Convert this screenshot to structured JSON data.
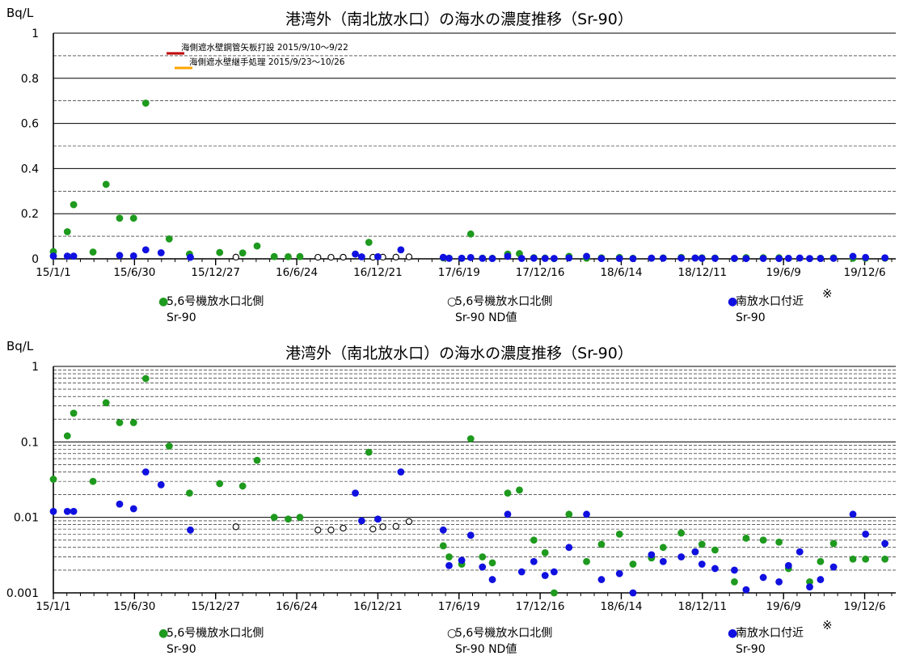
{
  "chart_data": [
    {
      "type": "scatter",
      "title": "港湾外（南北放水口）の海水の濃度推移（Sr-90）",
      "ylabel": "Bq/L",
      "yscale": "linear",
      "ylim": [
        0,
        1
      ],
      "yticks": [
        0,
        0.2,
        0.4,
        0.6,
        0.8,
        1
      ],
      "ytick_labels": [
        "0",
        "0.2",
        "0.4",
        "0.6",
        "0.8",
        "1"
      ],
      "dashed_grid": [
        0.1,
        0.3,
        0.5,
        0.7,
        0.9
      ],
      "xlim": [
        "2015-01-01",
        "2020-02-13"
      ],
      "xtick_labels": [
        "15/1/1",
        "15/6/30",
        "15/12/27",
        "16/6/24",
        "16/12/21",
        "17/6/19",
        "17/12/16",
        "18/6/14",
        "18/12/11",
        "19/6/9",
        "19/12/6"
      ],
      "xticks": [
        "2015-01-01",
        "2015-06-30",
        "2015-12-27",
        "2016-06-24",
        "2016-12-21",
        "2017-06-19",
        "2017-12-16",
        "2018-06-14",
        "2018-12-11",
        "2019-06-09",
        "2019-12-06"
      ],
      "annotations": [
        {
          "label": "海側遮水壁鋼管矢板打設 2015/9/10～9/22",
          "color": "#c00000"
        },
        {
          "label": "海側遮水壁継手処理 2015/9/23～10/26",
          "color": "#ffa500"
        }
      ],
      "legend": [
        {
          "marker": "●",
          "line1": "5,6号機放水口北側",
          "line2": "Sr-90",
          "color": "#1e9a1e"
        },
        {
          "marker": "○",
          "line1": "5,6号機放水口北側",
          "line2": "Sr-90 ND値",
          "color": "#000000"
        },
        {
          "marker": "●",
          "line1": "南放水口付近",
          "line2": "Sr-90",
          "note": "※",
          "color": "#1010e0"
        }
      ],
      "series": [
        {
          "name": "5,6号機放水口北側 Sr-90",
          "color": "#1e9a1e",
          "marker": "filled",
          "x": [
            "2015-01-01",
            "2015-02-01",
            "2015-02-15",
            "2015-03-30",
            "2015-04-28",
            "2015-05-28",
            "2015-06-28",
            "2015-07-25",
            "2015-09-15",
            "2015-10-30",
            "2016-01-05",
            "2016-02-25",
            "2016-03-28",
            "2016-05-05",
            "2016-06-05",
            "2016-07-01",
            "2016-12-01",
            "2017-05-15",
            "2017-05-28",
            "2017-06-25",
            "2017-07-15",
            "2017-08-10",
            "2017-09-01",
            "2017-10-05",
            "2017-10-31",
            "2017-12-02",
            "2017-12-27",
            "2018-01-16",
            "2018-02-18",
            "2018-03-29",
            "2018-05-01",
            "2018-06-10",
            "2018-07-10",
            "2018-08-20",
            "2018-09-15",
            "2018-10-25",
            "2018-11-25",
            "2018-12-10",
            "2019-01-08",
            "2019-02-20",
            "2019-03-18",
            "2019-04-25",
            "2019-05-30",
            "2019-06-20",
            "2019-08-06",
            "2019-08-30",
            "2019-09-28",
            "2019-11-10",
            "2019-12-08",
            "2020-01-20"
          ],
          "y": [
            0.032,
            0.12,
            0.24,
            0.03,
            0.33,
            0.18,
            0.18,
            0.69,
            0.088,
            0.021,
            0.028,
            0.026,
            0.057,
            0.01,
            0.0095,
            0.01,
            0.073,
            0.0042,
            0.003,
            0.0024,
            0.11,
            0.003,
            0.0025,
            0.021,
            0.023,
            0.005,
            0.0034,
            0.001,
            0.011,
            0.0026,
            0.0044,
            0.006,
            0.0024,
            0.0029,
            0.004,
            0.0062,
            0.0035,
            0.0044,
            0.0037,
            0.0014,
            0.0053,
            0.005,
            0.0047,
            0.0021,
            0.0014,
            0.0026,
            0.0045,
            0.0028,
            0.0028,
            0.0028
          ]
        },
        {
          "name": "5,6号機放水口北側 Sr-90 ND値",
          "color": "#000000",
          "marker": "open",
          "x": [
            "2016-02-10",
            "2016-08-10",
            "2016-09-08",
            "2016-10-05",
            "2016-12-10",
            "2017-01-01",
            "2017-01-30",
            "2017-02-28"
          ],
          "y": [
            0.0075,
            0.0068,
            0.0068,
            0.0072,
            0.007,
            0.0075,
            0.0076,
            0.0088
          ]
        },
        {
          "name": "南放水口付近 Sr-90",
          "color": "#1010e0",
          "marker": "filled",
          "x": [
            "2015-01-01",
            "2015-02-01",
            "2015-02-15",
            "2015-05-28",
            "2015-06-28",
            "2015-07-25",
            "2015-08-28",
            "2015-11-01",
            "2016-11-01",
            "2016-11-15",
            "2016-12-21",
            "2017-02-10",
            "2017-05-15",
            "2017-05-28",
            "2017-06-25",
            "2017-07-15",
            "2017-08-10",
            "2017-09-01",
            "2017-10-05",
            "2017-11-05",
            "2017-12-02",
            "2017-12-27",
            "2018-01-16",
            "2018-02-18",
            "2018-03-29",
            "2018-05-01",
            "2018-06-10",
            "2018-07-10",
            "2018-08-20",
            "2018-09-15",
            "2018-10-25",
            "2018-11-25",
            "2018-12-10",
            "2019-01-08",
            "2019-02-20",
            "2019-03-18",
            "2019-04-25",
            "2019-05-30",
            "2019-06-20",
            "2019-07-15",
            "2019-08-06",
            "2019-08-30",
            "2019-09-28",
            "2019-11-10",
            "2019-12-08",
            "2020-01-20"
          ],
          "y": [
            0.012,
            0.012,
            0.012,
            0.015,
            0.013,
            0.04,
            0.027,
            0.0068,
            0.021,
            0.009,
            0.0095,
            0.04,
            0.0068,
            0.0023,
            0.0027,
            0.0058,
            0.0022,
            0.0015,
            0.011,
            0.0019,
            0.0026,
            0.0017,
            0.0019,
            0.004,
            0.011,
            0.0015,
            0.0018,
            0.001,
            0.0032,
            0.0026,
            0.003,
            0.0035,
            0.0024,
            0.0021,
            0.002,
            0.0011,
            0.0016,
            0.0014,
            0.0023,
            0.0035,
            0.0012,
            0.0015,
            0.0022,
            0.011,
            0.006,
            0.0045
          ]
        }
      ]
    },
    {
      "type": "scatter",
      "title": "港湾外（南北放水口）の海水の濃度推移（Sr-90）",
      "ylabel": "Bq/L",
      "yscale": "log",
      "ylim": [
        0.001,
        1
      ],
      "yticks": [
        0.001,
        0.01,
        0.1,
        1
      ],
      "ytick_labels": [
        "0.001",
        "0.01",
        "0.1",
        "1"
      ],
      "xlim": [
        "2015-01-01",
        "2020-02-13"
      ],
      "xtick_labels": [
        "15/1/1",
        "15/6/30",
        "15/12/27",
        "16/6/24",
        "16/12/21",
        "17/6/19",
        "17/12/16",
        "18/6/14",
        "18/12/11",
        "19/6/9",
        "19/12/6"
      ],
      "xticks": [
        "2015-01-01",
        "2015-06-30",
        "2015-12-27",
        "2016-06-24",
        "2016-12-21",
        "2017-06-19",
        "2017-12-16",
        "2018-06-14",
        "2018-12-11",
        "2019-06-09",
        "2019-12-06"
      ],
      "legend": [
        {
          "marker": "●",
          "line1": "5,6号機放水口北側",
          "line2": "Sr-90",
          "color": "#1e9a1e"
        },
        {
          "marker": "○",
          "line1": "5,6号機放水口北側",
          "line2": "Sr-90 ND値",
          "color": "#000000"
        },
        {
          "marker": "●",
          "line1": "南放水口付近",
          "line2": "Sr-90",
          "note": "※",
          "color": "#1010e0"
        }
      ]
    }
  ]
}
